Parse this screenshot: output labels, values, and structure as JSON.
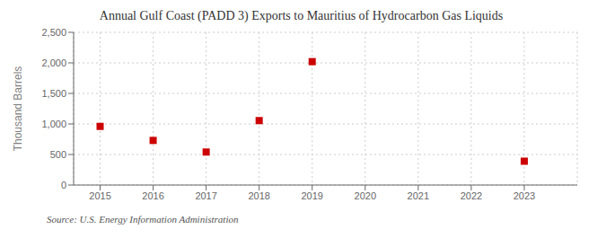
{
  "chart_data": {
    "type": "scatter",
    "title": "Annual Gulf Coast (PADD 3) Exports to Mauritius of Hydrocarbon Gas Liquids",
    "y_label": "Thousand Barrels",
    "annotations": [
      "Source: U.S. Energy Information Administration"
    ],
    "x": [
      2015,
      2016,
      2017,
      2018,
      2019,
      2020,
      2021,
      2022,
      2023
    ],
    "values": [
      960,
      730,
      540,
      1055,
      2020,
      null,
      null,
      null,
      390
    ],
    "color": "#cc0000",
    "marker": "square",
    "xlim": [
      2014.5,
      2024.0
    ],
    "xticks": [
      2015,
      2016,
      2017,
      2018,
      2019,
      2020,
      2021,
      2022,
      2023
    ],
    "ylim": [
      0,
      2500
    ],
    "yticks": [
      0,
      500,
      {
        "value": 1000,
        "label": "1,000"
      },
      {
        "value": 1500,
        "label": "1,500"
      },
      {
        "value": 2000,
        "label": "2,000"
      },
      {
        "value": 2500,
        "label": "2,500"
      }
    ],
    "grid": true
  }
}
